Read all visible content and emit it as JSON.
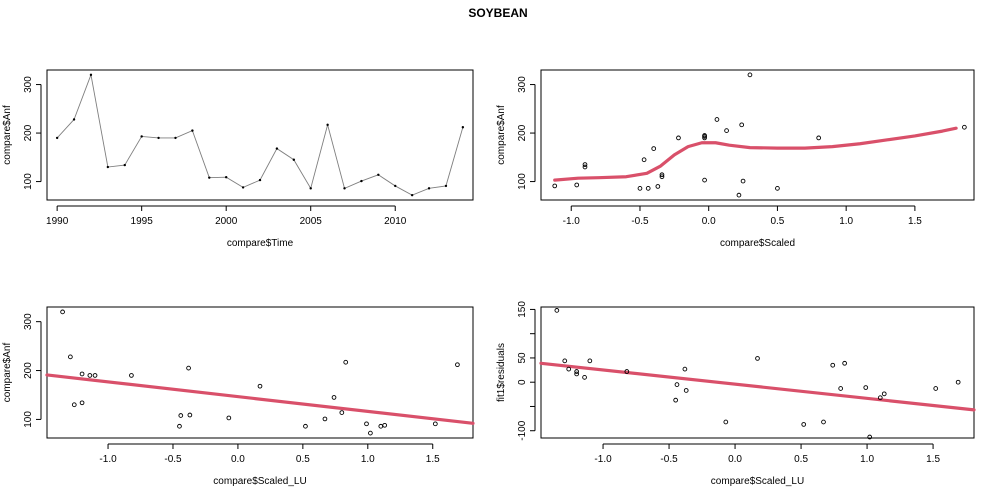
{
  "title": "SOYBEAN",
  "colors": {
    "fit": "#d9506a",
    "data": "#000000",
    "series": "#7f7f7f",
    "axis": "#000000"
  },
  "chart_data": [
    {
      "type": "line",
      "xlabel": "compare$Time",
      "ylabel": "compare$Anf",
      "xlim": [
        1989.4,
        2014.6
      ],
      "ylim": [
        62,
        330
      ],
      "xticks": [
        1990,
        1995,
        2000,
        2005,
        2010
      ],
      "yticks": [
        100,
        200,
        300
      ],
      "x": [
        1990,
        1991,
        1992,
        1993,
        1994,
        1995,
        1996,
        1997,
        1998,
        1999,
        2000,
        2001,
        2002,
        2003,
        2004,
        2005,
        2006,
        2007,
        2008,
        2009,
        2010,
        2011,
        2012,
        2013,
        2014
      ],
      "y": [
        190,
        228,
        320,
        130,
        134,
        193,
        190,
        190,
        205,
        108,
        109,
        88,
        103,
        168,
        145,
        86,
        217,
        86,
        101,
        114,
        91,
        72,
        86,
        91,
        212
      ]
    },
    {
      "type": "scatter",
      "xlabel": "compare$Scaled",
      "ylabel": "compare$Anf",
      "xlim": [
        -1.22,
        1.93
      ],
      "ylim": [
        62,
        330
      ],
      "xticks": [
        -1.0,
        -0.5,
        0.0,
        0.5,
        1.0,
        1.5
      ],
      "xtick_labels": [
        "-1.0",
        "-0.5",
        "0.0",
        "0.5",
        "1.0",
        "1.5"
      ],
      "yticks": [
        100,
        200,
        300
      ],
      "points": [
        [
          -1.12,
          91
        ],
        [
          -0.96,
          93
        ],
        [
          -0.9,
          135
        ],
        [
          -0.9,
          130
        ],
        [
          -0.47,
          145
        ],
        [
          -0.5,
          86
        ],
        [
          -0.44,
          86
        ],
        [
          -0.4,
          168
        ],
        [
          -0.37,
          90
        ],
        [
          -0.34,
          110
        ],
        [
          -0.34,
          114
        ],
        [
          -0.22,
          190
        ],
        [
          -0.03,
          193
        ],
        [
          -0.03,
          190
        ],
        [
          -0.03,
          103
        ],
        [
          -0.03,
          195
        ],
        [
          0.06,
          228
        ],
        [
          0.13,
          205
        ],
        [
          0.22,
          72
        ],
        [
          0.24,
          217
        ],
        [
          0.25,
          101
        ],
        [
          0.3,
          320
        ],
        [
          0.5,
          86
        ],
        [
          0.8,
          190
        ],
        [
          1.86,
          212
        ]
      ],
      "fit_line": [
        [
          -1.12,
          103
        ],
        [
          -0.95,
          107
        ],
        [
          -0.8,
          108
        ],
        [
          -0.6,
          110
        ],
        [
          -0.45,
          117
        ],
        [
          -0.35,
          132
        ],
        [
          -0.25,
          155
        ],
        [
          -0.15,
          172
        ],
        [
          -0.05,
          180
        ],
        [
          0.05,
          180
        ],
        [
          0.15,
          175
        ],
        [
          0.3,
          170
        ],
        [
          0.5,
          169
        ],
        [
          0.7,
          169
        ],
        [
          0.9,
          172
        ],
        [
          1.1,
          178
        ],
        [
          1.3,
          186
        ],
        [
          1.5,
          194
        ],
        [
          1.7,
          204
        ],
        [
          1.8,
          210
        ]
      ]
    },
    {
      "type": "scatter",
      "xlabel": "compare$Scaled_LU",
      "ylabel": "compare$Anf",
      "xlim": [
        -1.47,
        1.81
      ],
      "ylim": [
        62,
        330
      ],
      "xticks": [
        -1.0,
        -0.5,
        0.0,
        0.5,
        1.0,
        1.5
      ],
      "xtick_labels": [
        "-1.0",
        "-0.5",
        "0.0",
        "0.5",
        "1.0",
        "1.5"
      ],
      "yticks": [
        100,
        200,
        300
      ],
      "points": [
        [
          -1.35,
          320
        ],
        [
          -1.29,
          228
        ],
        [
          -1.26,
          130
        ],
        [
          -1.2,
          134
        ],
        [
          -1.2,
          193
        ],
        [
          -1.14,
          190
        ],
        [
          -1.1,
          190
        ],
        [
          -0.82,
          190
        ],
        [
          -0.45,
          86
        ],
        [
          -0.44,
          108
        ],
        [
          -0.38,
          205
        ],
        [
          -0.37,
          109
        ],
        [
          -0.07,
          103
        ],
        [
          0.17,
          168
        ],
        [
          0.52,
          86
        ],
        [
          0.67,
          101
        ],
        [
          0.74,
          145
        ],
        [
          0.8,
          114
        ],
        [
          0.83,
          217
        ],
        [
          0.99,
          91
        ],
        [
          1.02,
          72
        ],
        [
          1.1,
          86
        ],
        [
          1.13,
          88
        ],
        [
          1.52,
          91
        ],
        [
          1.69,
          212
        ]
      ],
      "fit_line": [
        [
          -1.47,
          191
        ],
        [
          1.81,
          92
        ]
      ]
    },
    {
      "type": "scatter",
      "xlabel": "compare$Scaled_LU",
      "ylabel": "fit1$residuals",
      "xlim": [
        -1.47,
        1.81
      ],
      "ylim": [
        -115,
        155
      ],
      "xticks": [
        -1.0,
        -0.5,
        0.0,
        0.5,
        1.0,
        1.5
      ],
      "xtick_labels": [
        "-1.0",
        "-0.5",
        "0.0",
        "0.5",
        "1.0",
        "1.5"
      ],
      "yticks": [
        -100,
        -50,
        0,
        50,
        100,
        150
      ],
      "ytick_labels": [
        "-100",
        "",
        "0",
        "50",
        "",
        "150"
      ],
      "points": [
        [
          -1.35,
          148
        ],
        [
          -1.29,
          44
        ],
        [
          -1.26,
          27
        ],
        [
          -1.2,
          17
        ],
        [
          -1.2,
          22
        ],
        [
          -1.14,
          10
        ],
        [
          -1.1,
          44
        ],
        [
          -0.82,
          22
        ],
        [
          -0.45,
          -37
        ],
        [
          -0.44,
          -5
        ],
        [
          -0.38,
          27
        ],
        [
          -0.37,
          -17
        ],
        [
          -0.07,
          -82
        ],
        [
          0.17,
          49
        ],
        [
          0.52,
          -87
        ],
        [
          0.67,
          -82
        ],
        [
          0.74,
          35
        ],
        [
          0.8,
          -13
        ],
        [
          0.83,
          39
        ],
        [
          0.99,
          -11
        ],
        [
          1.02,
          -113
        ],
        [
          1.1,
          -32
        ],
        [
          1.13,
          -24
        ],
        [
          1.52,
          -13
        ],
        [
          1.69,
          0
        ]
      ],
      "fit_line": [
        [
          -1.47,
          39
        ],
        [
          1.81,
          -57
        ]
      ]
    }
  ]
}
